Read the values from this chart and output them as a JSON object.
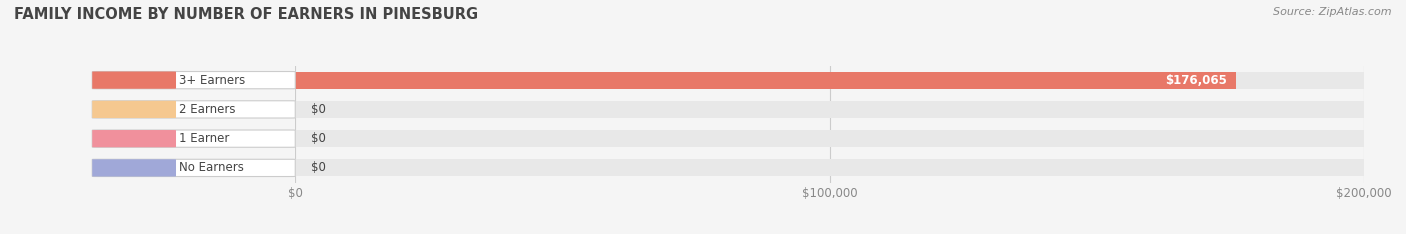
{
  "title": "FAMILY INCOME BY NUMBER OF EARNERS IN PINESBURG",
  "source": "Source: ZipAtlas.com",
  "categories": [
    "No Earners",
    "1 Earner",
    "2 Earners",
    "3+ Earners"
  ],
  "values": [
    0,
    0,
    0,
    176065
  ],
  "bar_colors": [
    "#a0a8d8",
    "#f0909c",
    "#f5c890",
    "#e87868"
  ],
  "value_labels": [
    "$0",
    "$0",
    "$0",
    "$176,065"
  ],
  "xlim": [
    0,
    200000
  ],
  "xticks": [
    0,
    100000,
    200000
  ],
  "xtick_labels": [
    "$0",
    "$100,000",
    "$200,000"
  ],
  "bg_color": "#f5f5f5",
  "bar_bg_color": "#e8e8e8",
  "title_color": "#444444",
  "tick_color": "#888888",
  "source_color": "#888888"
}
